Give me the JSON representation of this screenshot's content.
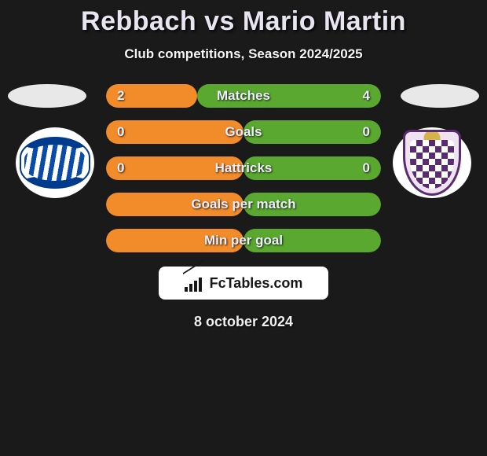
{
  "header": {
    "title": "Rebbach vs Mario Martin",
    "subtitle": "Club competitions, Season 2024/2025"
  },
  "colors": {
    "accent_orange": "#f28c2a",
    "accent_green": "#5aa82f",
    "dark_bg": "#1a1a1a",
    "panel_white": "#ffffff"
  },
  "bars": [
    {
      "metric": "Matches",
      "left": "2",
      "right": "4",
      "left_pct": 33,
      "right_pct": 67,
      "left_color": "#f28c2a",
      "right_color": "#5aa82f"
    },
    {
      "metric": "Goals",
      "left": "0",
      "right": "0",
      "left_pct": 50,
      "right_pct": 50,
      "left_color": "#f28c2a",
      "right_color": "#5aa82f"
    },
    {
      "metric": "Hattricks",
      "left": "0",
      "right": "0",
      "left_pct": 50,
      "right_pct": 50,
      "left_color": "#f28c2a",
      "right_color": "#5aa82f"
    },
    {
      "metric": "Goals per match",
      "left": "",
      "right": "",
      "left_pct": 50,
      "right_pct": 50,
      "left_color": "#f28c2a",
      "right_color": "#5aa82f"
    },
    {
      "metric": "Min per goal",
      "left": "",
      "right": "",
      "left_pct": 50,
      "right_pct": 50,
      "left_color": "#f28c2a",
      "right_color": "#5aa82f"
    }
  ],
  "footer": {
    "brand": "FcTables.com",
    "date": "8 october 2024"
  },
  "clubs": {
    "left_name": "deportivo-alaves-badge",
    "right_name": "real-valladolid-badge"
  }
}
